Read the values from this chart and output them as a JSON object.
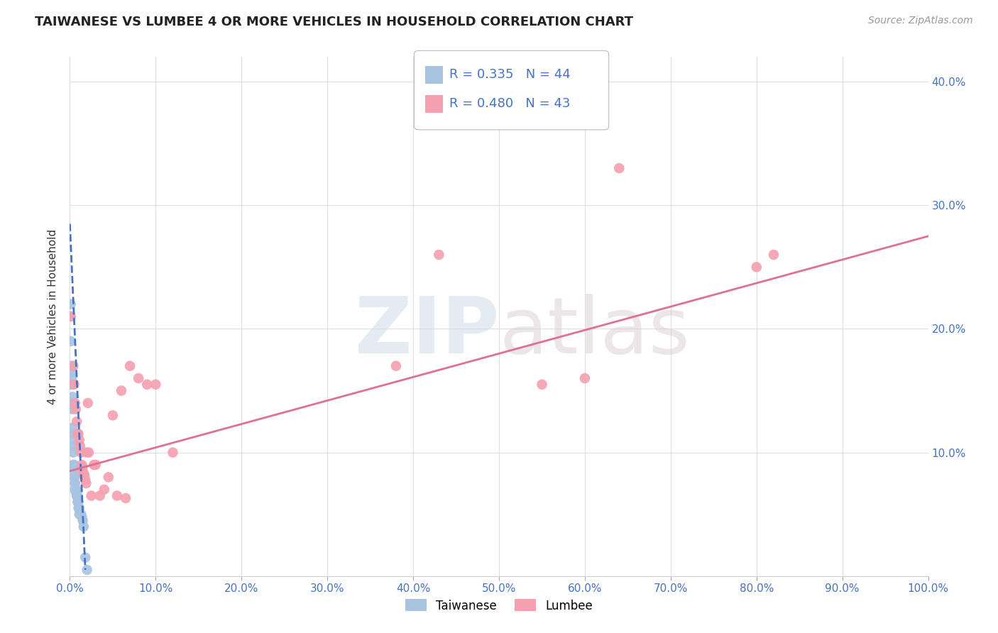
{
  "title": "TAIWANESE VS LUMBEE 4 OR MORE VEHICLES IN HOUSEHOLD CORRELATION CHART",
  "source": "Source: ZipAtlas.com",
  "ylabel": "4 or more Vehicles in Household",
  "watermark": "ZIPatlas",
  "xlim": [
    0,
    1.0
  ],
  "ylim": [
    0,
    0.42
  ],
  "xticks": [
    0.0,
    0.1,
    0.2,
    0.3,
    0.4,
    0.5,
    0.6,
    0.7,
    0.8,
    0.9,
    1.0
  ],
  "yticks": [
    0.0,
    0.1,
    0.2,
    0.3,
    0.4
  ],
  "taiwanese_R": 0.335,
  "taiwanese_N": 44,
  "lumbee_R": 0.48,
  "lumbee_N": 43,
  "taiwanese_color": "#a8c4e0",
  "lumbee_color": "#f4a0b0",
  "taiwanese_line_color": "#4472c4",
  "lumbee_line_color": "#e07090",
  "taiwanese_x": [
    0.001,
    0.001,
    0.001,
    0.002,
    0.002,
    0.002,
    0.002,
    0.003,
    0.003,
    0.003,
    0.003,
    0.003,
    0.004,
    0.004,
    0.004,
    0.004,
    0.004,
    0.005,
    0.005,
    0.005,
    0.005,
    0.006,
    0.006,
    0.006,
    0.006,
    0.007,
    0.007,
    0.007,
    0.008,
    0.008,
    0.008,
    0.009,
    0.009,
    0.01,
    0.01,
    0.011,
    0.011,
    0.012,
    0.013,
    0.014,
    0.015,
    0.016,
    0.018,
    0.02
  ],
  "taiwanese_y": [
    0.22,
    0.21,
    0.19,
    0.17,
    0.165,
    0.16,
    0.155,
    0.155,
    0.145,
    0.14,
    0.135,
    0.12,
    0.115,
    0.11,
    0.105,
    0.1,
    0.09,
    0.09,
    0.088,
    0.085,
    0.08,
    0.08,
    0.075,
    0.075,
    0.07,
    0.07,
    0.07,
    0.068,
    0.068,
    0.065,
    0.065,
    0.065,
    0.06,
    0.06,
    0.055,
    0.055,
    0.05,
    0.05,
    0.05,
    0.048,
    0.045,
    0.04,
    0.015,
    0.005
  ],
  "lumbee_x": [
    0.001,
    0.004,
    0.005,
    0.006,
    0.007,
    0.008,
    0.009,
    0.01,
    0.011,
    0.012,
    0.013,
    0.014,
    0.015,
    0.015,
    0.016,
    0.017,
    0.018,
    0.019,
    0.02,
    0.021,
    0.022,
    0.025,
    0.028,
    0.03,
    0.035,
    0.04,
    0.045,
    0.05,
    0.055,
    0.06,
    0.065,
    0.07,
    0.08,
    0.09,
    0.1,
    0.12,
    0.38,
    0.43,
    0.55,
    0.6,
    0.64,
    0.8,
    0.82
  ],
  "lumbee_y": [
    0.21,
    0.17,
    0.155,
    0.14,
    0.135,
    0.125,
    0.115,
    0.115,
    0.11,
    0.105,
    0.1,
    0.09,
    0.088,
    0.085,
    0.082,
    0.082,
    0.078,
    0.075,
    0.1,
    0.14,
    0.1,
    0.065,
    0.09,
    0.09,
    0.065,
    0.07,
    0.08,
    0.13,
    0.065,
    0.15,
    0.063,
    0.17,
    0.16,
    0.155,
    0.155,
    0.1,
    0.17,
    0.26,
    0.155,
    0.16,
    0.33,
    0.25,
    0.26
  ],
  "taiwanese_trendline_x": [
    0.0,
    0.018
  ],
  "taiwanese_trendline_y": [
    0.285,
    0.005
  ],
  "lumbee_trendline_x": [
    0.0,
    1.0
  ],
  "lumbee_trendline_y": [
    0.085,
    0.275
  ],
  "background_color": "#ffffff",
  "grid_color": "#dddddd"
}
